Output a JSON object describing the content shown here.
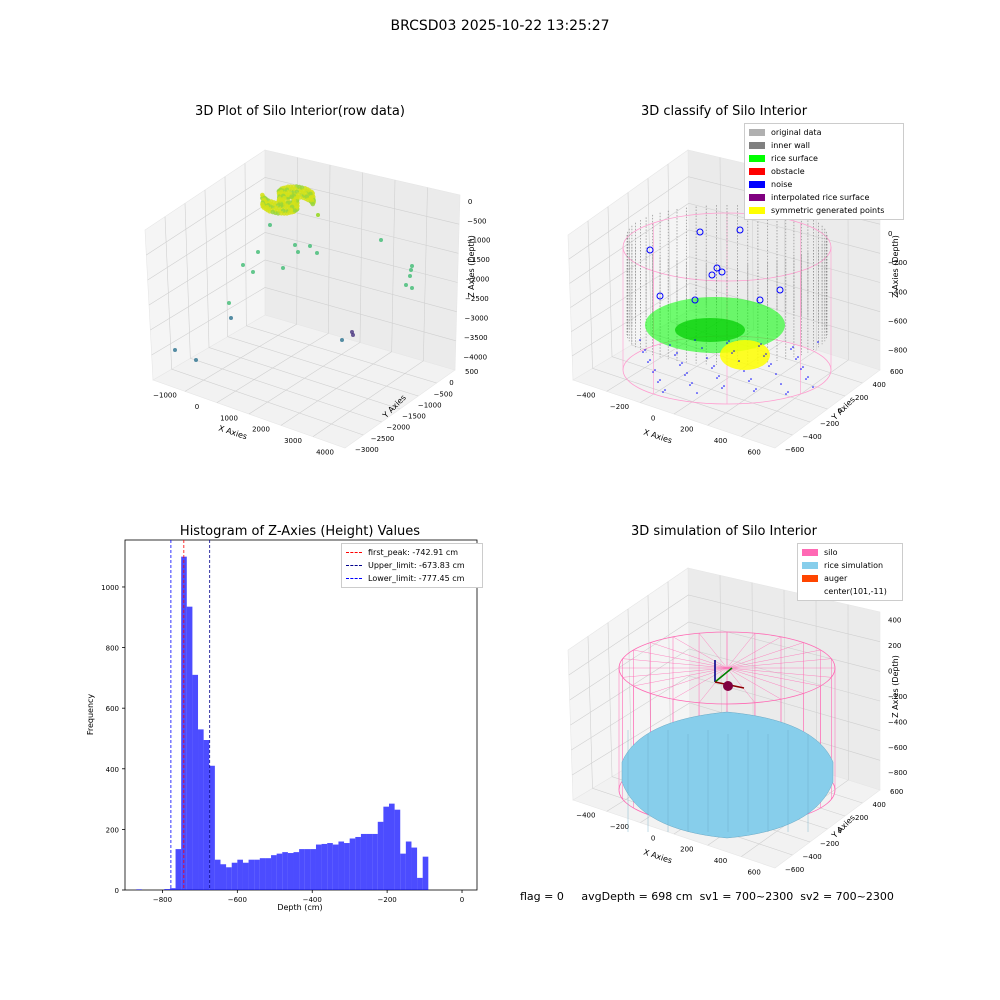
{
  "figure_title": "BRCSD03 2025-10-22 13:25:27",
  "footer": {
    "flag": "flag = 0",
    "avg_depth": "avgDepth = 698 cm",
    "sv1": "sv1 = 700~2300",
    "sv2": "sv2 = 700~2300"
  },
  "chart_data": [
    {
      "type": "scatter",
      "title": "3D Plot of Silo Interior(row data)",
      "xlabel": "X Axies",
      "ylabel": "Y Axies",
      "zlabel": "Z Axies (Depth)",
      "x_ticks": [
        "−1000",
        "0",
        "1000",
        "2000",
        "3000",
        "4000"
      ],
      "y_ticks": [
        "500",
        "0",
        "−500",
        "−1000",
        "−1500",
        "−2000",
        "−2500",
        "−3000"
      ],
      "z_ticks": [
        "0",
        "−500",
        "−1000",
        "−1500",
        "−2000",
        "−2500",
        "−3000",
        "−3500",
        "−4000"
      ],
      "grid": true,
      "colors": {
        "surface": "#d4e21a",
        "mid": "#3fbc73",
        "deep": "#46327e"
      }
    },
    {
      "type": "scatter",
      "title": "3D classify of Silo Interior",
      "xlabel": "X Axies",
      "ylabel": "Y Axies",
      "zlabel": "Z Axies (Depth)",
      "x_ticks": [
        "−400",
        "−200",
        "0",
        "200",
        "400",
        "600"
      ],
      "y_ticks": [
        "600",
        "400",
        "200",
        "0",
        "−200",
        "−400",
        "−600"
      ],
      "z_ticks": [
        "200",
        "0",
        "−200",
        "−400",
        "−600",
        "−800"
      ],
      "z_top_partial": "00",
      "grid": true,
      "legend_position": "upper-right",
      "legend": [
        {
          "label": "original data",
          "color": "#b0b0b0"
        },
        {
          "label": "inner wall",
          "color": "#808080"
        },
        {
          "label": "rice surface",
          "color": "#00ff00"
        },
        {
          "label": "obstacle",
          "color": "#ff0000"
        },
        {
          "label": "noise",
          "color": "#0000ff"
        },
        {
          "label": "interpolated rice surface",
          "color": "#800080"
        },
        {
          "label": "symmetric generated points",
          "color": "#ffff00"
        }
      ],
      "wireframe_color": "#ff9ccf"
    },
    {
      "type": "bar",
      "title": "Histogram of Z-Axies (Height) Values",
      "xlabel": "Depth (cm)",
      "ylabel": "Frequency",
      "xlim": [
        -900,
        40
      ],
      "ylim": [
        0,
        1155
      ],
      "x_ticks": [
        -800,
        -600,
        -400,
        -200,
        0
      ],
      "y_ticks": [
        0,
        200,
        400,
        600,
        800,
        1000
      ],
      "bar_color": "#0000ff",
      "bin_width": 15,
      "bins": [
        {
          "x": -870,
          "y": 2
        },
        {
          "x": -855,
          "y": 0
        },
        {
          "x": -840,
          "y": 0
        },
        {
          "x": -825,
          "y": 0
        },
        {
          "x": -810,
          "y": 0
        },
        {
          "x": -795,
          "y": 3
        },
        {
          "x": -780,
          "y": 6
        },
        {
          "x": -765,
          "y": 135
        },
        {
          "x": -750,
          "y": 1100
        },
        {
          "x": -735,
          "y": 935
        },
        {
          "x": -720,
          "y": 710
        },
        {
          "x": -705,
          "y": 530
        },
        {
          "x": -690,
          "y": 495
        },
        {
          "x": -675,
          "y": 410
        },
        {
          "x": -660,
          "y": 100
        },
        {
          "x": -645,
          "y": 85
        },
        {
          "x": -630,
          "y": 75
        },
        {
          "x": -615,
          "y": 90
        },
        {
          "x": -600,
          "y": 100
        },
        {
          "x": -585,
          "y": 90
        },
        {
          "x": -570,
          "y": 100
        },
        {
          "x": -555,
          "y": 100
        },
        {
          "x": -540,
          "y": 105
        },
        {
          "x": -525,
          "y": 105
        },
        {
          "x": -510,
          "y": 115
        },
        {
          "x": -495,
          "y": 120
        },
        {
          "x": -480,
          "y": 125
        },
        {
          "x": -465,
          "y": 122
        },
        {
          "x": -450,
          "y": 125
        },
        {
          "x": -435,
          "y": 135
        },
        {
          "x": -420,
          "y": 135
        },
        {
          "x": -405,
          "y": 135
        },
        {
          "x": -390,
          "y": 150
        },
        {
          "x": -375,
          "y": 152
        },
        {
          "x": -360,
          "y": 155
        },
        {
          "x": -345,
          "y": 150
        },
        {
          "x": -330,
          "y": 160
        },
        {
          "x": -315,
          "y": 155
        },
        {
          "x": -300,
          "y": 170
        },
        {
          "x": -285,
          "y": 175
        },
        {
          "x": -270,
          "y": 185
        },
        {
          "x": -255,
          "y": 185
        },
        {
          "x": -240,
          "y": 185
        },
        {
          "x": -225,
          "y": 225
        },
        {
          "x": -210,
          "y": 275
        },
        {
          "x": -195,
          "y": 285
        },
        {
          "x": -180,
          "y": 265
        },
        {
          "x": -165,
          "y": 120
        },
        {
          "x": -150,
          "y": 160
        },
        {
          "x": -135,
          "y": 140
        },
        {
          "x": -120,
          "y": 40
        },
        {
          "x": -105,
          "y": 110
        }
      ],
      "vlines": [
        {
          "label": "first_peak: -742.91 cm",
          "x": -742.91,
          "color": "#ff0000"
        },
        {
          "label": "Upper_limit: -673.83 cm",
          "x": -673.83,
          "color": "#00008b"
        },
        {
          "label": "Lower_limit: -777.45 cm",
          "x": -777.45,
          "color": "#0000ff"
        }
      ],
      "legend_position": "upper-right"
    },
    {
      "type": "surface",
      "title": "3D simulation of Silo Interior",
      "xlabel": "X Axies",
      "ylabel": "Y Axies",
      "zlabel": "Z Axies (Depth)",
      "x_ticks": [
        "−400",
        "−200",
        "0",
        "200",
        "400",
        "600"
      ],
      "y_ticks": [
        "600",
        "400",
        "200",
        "0",
        "−200",
        "−400",
        "−600"
      ],
      "z_ticks": [
        "400",
        "200",
        "0",
        "−200",
        "−400",
        "−600",
        "−800"
      ],
      "grid": true,
      "legend_position": "upper-right",
      "legend": [
        {
          "label": "silo",
          "color": "#ff69b4"
        },
        {
          "label": "rice simulation",
          "color": "#87ceeb"
        },
        {
          "label": "auger",
          "color": "#ff4500"
        },
        {
          "label": "center(101,-11)",
          "color": ""
        }
      ]
    }
  ]
}
